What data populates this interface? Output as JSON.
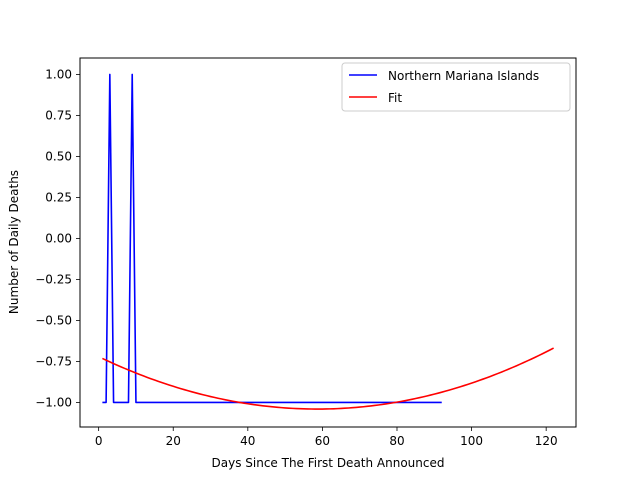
{
  "chart_data": {
    "type": "line",
    "title": "",
    "xlabel": "Days Since The First Death Announced",
    "ylabel": "Number of Daily Deaths",
    "xlim": [
      -5,
      128
    ],
    "ylim": [
      -1.15,
      1.1
    ],
    "xticks": [
      0,
      20,
      40,
      60,
      80,
      100,
      120
    ],
    "yticks": [
      -1.0,
      -0.75,
      -0.5,
      -0.25,
      0.0,
      0.25,
      0.5,
      0.75,
      1.0
    ],
    "grid": false,
    "legend_position": "top-right",
    "series": [
      {
        "name": "Northern Mariana Islands",
        "color": "#0000ff",
        "x": [
          1,
          2,
          3,
          4,
          5,
          6,
          7,
          8,
          9,
          10,
          11,
          20,
          40,
          60,
          80,
          92
        ],
        "y": [
          -1,
          -1,
          1,
          -1,
          -1,
          -1,
          -1,
          -1,
          1,
          -1,
          -1,
          -1,
          -1,
          -1,
          -1,
          -1
        ]
      },
      {
        "name": "Fit",
        "color": "#ff0000",
        "fit_curve": {
          "a": 9.27e-05,
          "b": -0.01088,
          "c": -0.7213,
          "x_start": 1,
          "x_end": 122
        }
      }
    ]
  }
}
